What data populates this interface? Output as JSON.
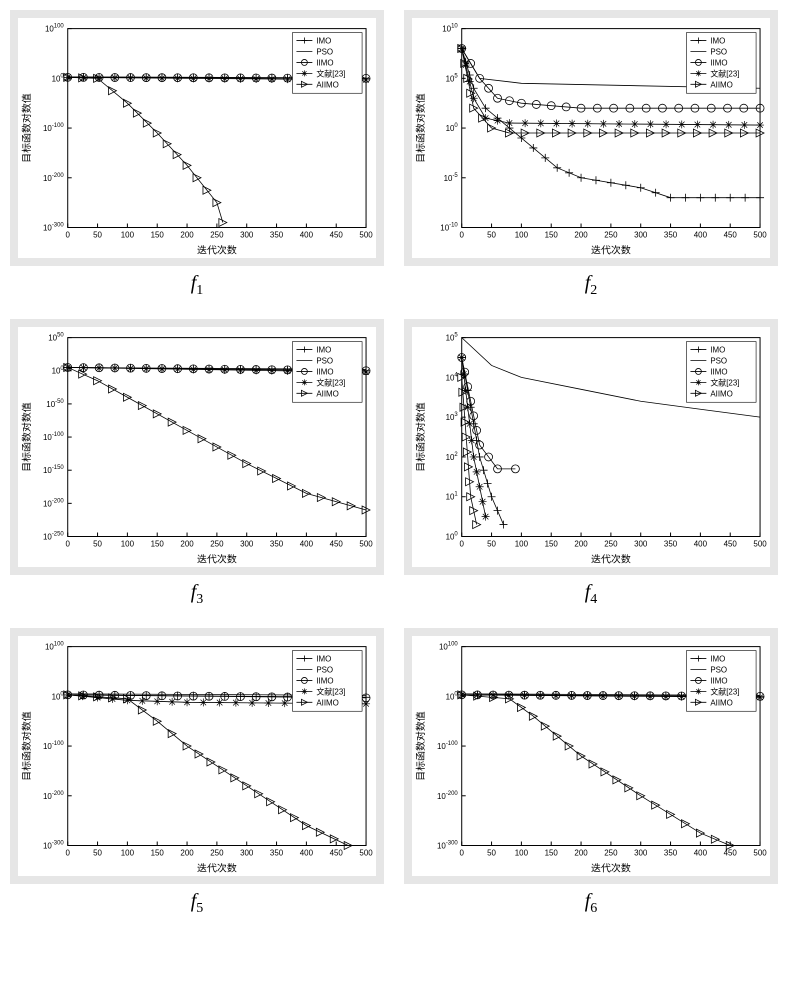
{
  "layout": {
    "rows": 3,
    "cols": 2,
    "panel_bg": "#e6e6e6",
    "plot_bg": "#ffffff"
  },
  "common": {
    "xlim": [
      0,
      500
    ],
    "xticks": [
      0,
      50,
      100,
      150,
      200,
      250,
      300,
      350,
      400,
      450,
      500
    ],
    "xlabel": "迭代次数",
    "ylabel": "目标函数对数值",
    "label_fontsize": 10,
    "tick_fontsize": 8,
    "axis_color": "#000000",
    "legend_items": [
      "IMO",
      "PSO",
      "IIMO",
      "文献[23]",
      "AIIMO"
    ],
    "legend_markers": [
      "plus",
      "line",
      "circle",
      "star",
      "triangle"
    ],
    "legend_fontsize": 8,
    "marker_size": 4,
    "line_color": "#000000",
    "line_width": 0.8
  },
  "panels": [
    {
      "caption": "f",
      "sub": "1",
      "ylim_exp": [
        -300,
        100
      ],
      "ytick_exp": [
        -300,
        -200,
        -100,
        0,
        100
      ],
      "yticks_label": [
        "10^{-300}",
        "10^{-200}",
        "10^{-100}",
        "10^{0}",
        "10^{100}"
      ],
      "series": {
        "IMO": {
          "marker": "plus",
          "pts": [
            [
              0,
              2
            ],
            [
              500,
              0
            ]
          ]
        },
        "PSO": {
          "marker": "line",
          "pts": [
            [
              0,
              3
            ],
            [
              500,
              1
            ]
          ]
        },
        "IIMO": {
          "marker": "circle",
          "pts": [
            [
              0,
              2
            ],
            [
              500,
              0
            ]
          ]
        },
        "ref23": {
          "marker": "star",
          "pts": [
            [
              0,
              2
            ],
            [
              500,
              -3
            ]
          ]
        },
        "AIIMO": {
          "marker": "triangle",
          "pts": [
            [
              0,
              2
            ],
            [
              50,
              0
            ],
            [
              100,
              -50
            ],
            [
              150,
              -110
            ],
            [
              200,
              -175
            ],
            [
              250,
              -250
            ],
            [
              260,
              -290
            ]
          ]
        }
      }
    },
    {
      "caption": "f",
      "sub": "2",
      "ylim_exp": [
        -10,
        10
      ],
      "ytick_exp": [
        -10,
        -5,
        0,
        5,
        10
      ],
      "yticks_label": [
        "10^{-10}",
        "10^{-5}",
        "10^{0}",
        "10^{5}",
        "10^{10}"
      ],
      "series": {
        "IMO": {
          "marker": "plus",
          "pts": [
            [
              0,
              8
            ],
            [
              20,
              4
            ],
            [
              40,
              2
            ],
            [
              80,
              0
            ],
            [
              120,
              -2
            ],
            [
              160,
              -4
            ],
            [
              200,
              -5
            ],
            [
              300,
              -6
            ],
            [
              350,
              -7
            ],
            [
              500,
              -7
            ]
          ]
        },
        "PSO": {
          "marker": "line",
          "pts": [
            [
              0,
              8
            ],
            [
              30,
              5
            ],
            [
              100,
              4.5
            ],
            [
              500,
              4
            ]
          ]
        },
        "IIMO": {
          "marker": "circle",
          "pts": [
            [
              0,
              8
            ],
            [
              30,
              5
            ],
            [
              60,
              3
            ],
            [
              100,
              2.5
            ],
            [
              200,
              2
            ],
            [
              500,
              2
            ]
          ]
        },
        "ref23": {
          "marker": "star",
          "pts": [
            [
              0,
              8
            ],
            [
              20,
              3
            ],
            [
              40,
              1
            ],
            [
              80,
              0.5
            ],
            [
              500,
              0.3
            ]
          ]
        },
        "AIIMO": {
          "marker": "triangle",
          "pts": [
            [
              0,
              8
            ],
            [
              20,
              2
            ],
            [
              50,
              0
            ],
            [
              80,
              -0.5
            ],
            [
              500,
              -0.5
            ]
          ]
        }
      }
    },
    {
      "caption": "f",
      "sub": "3",
      "ylim_exp": [
        -250,
        50
      ],
      "ytick_exp": [
        -250,
        -200,
        -150,
        -100,
        -50,
        0,
        50
      ],
      "yticks_label": [
        "10^{-250}",
        "10^{-200}",
        "10^{-150}",
        "10^{-100}",
        "10^{-50}",
        "10^{0}",
        "10^{50}"
      ],
      "series": {
        "IMO": {
          "marker": "plus",
          "pts": [
            [
              0,
              5
            ],
            [
              500,
              0
            ]
          ]
        },
        "PSO": {
          "marker": "line",
          "pts": [
            [
              0,
              5
            ],
            [
              500,
              2
            ]
          ]
        },
        "IIMO": {
          "marker": "circle",
          "pts": [
            [
              0,
              5
            ],
            [
              500,
              0
            ]
          ]
        },
        "ref23": {
          "marker": "star",
          "pts": [
            [
              0,
              5
            ],
            [
              500,
              -2
            ]
          ]
        },
        "AIIMO": {
          "marker": "triangle",
          "pts": [
            [
              0,
              5
            ],
            [
              50,
              -15
            ],
            [
              100,
              -40
            ],
            [
              200,
              -90
            ],
            [
              300,
              -140
            ],
            [
              400,
              -185
            ],
            [
              500,
              -210
            ]
          ]
        }
      }
    },
    {
      "caption": "f",
      "sub": "4",
      "ylim_exp": [
        0,
        5
      ],
      "ytick_exp": [
        0,
        1,
        2,
        3,
        4,
        5
      ],
      "yticks_label": [
        "10^{0}",
        "10^{1}",
        "10^{2}",
        "10^{3}",
        "10^{4}",
        "10^{5}"
      ],
      "series": {
        "IMO": {
          "marker": "plus",
          "pts": [
            [
              0,
              4.5
            ],
            [
              30,
              2
            ],
            [
              50,
              1
            ],
            [
              70,
              0.3
            ]
          ]
        },
        "PSO": {
          "marker": "line",
          "pts": [
            [
              0,
              5
            ],
            [
              50,
              4.3
            ],
            [
              100,
              4
            ],
            [
              200,
              3.7
            ],
            [
              300,
              3.4
            ],
            [
              400,
              3.2
            ],
            [
              500,
              3
            ]
          ]
        },
        "IIMO": {
          "marker": "circle",
          "pts": [
            [
              0,
              4.5
            ],
            [
              30,
              2.3
            ],
            [
              60,
              1.7
            ],
            [
              90,
              1.7
            ]
          ]
        },
        "ref23": {
          "marker": "star",
          "pts": [
            [
              0,
              4.5
            ],
            [
              20,
              2
            ],
            [
              40,
              0.5
            ]
          ]
        },
        "AIIMO": {
          "marker": "triangle",
          "pts": [
            [
              0,
              4
            ],
            [
              15,
              1
            ],
            [
              25,
              0.3
            ]
          ]
        }
      }
    },
    {
      "caption": "f",
      "sub": "5",
      "ylim_exp": [
        -300,
        100
      ],
      "ytick_exp": [
        -300,
        -200,
        -100,
        0,
        100
      ],
      "yticks_label": [
        "10^{-300}",
        "10^{-200}",
        "10^{-100}",
        "10^{0}",
        "10^{100}"
      ],
      "series": {
        "IMO": {
          "marker": "plus",
          "pts": [
            [
              0,
              3
            ],
            [
              500,
              -2
            ]
          ]
        },
        "PSO": {
          "marker": "line",
          "pts": [
            [
              0,
              5
            ],
            [
              500,
              2
            ]
          ]
        },
        "IIMO": {
          "marker": "circle",
          "pts": [
            [
              0,
              3
            ],
            [
              500,
              -3
            ]
          ]
        },
        "ref23": {
          "marker": "star",
          "pts": [
            [
              0,
              3
            ],
            [
              100,
              -8
            ],
            [
              200,
              -12
            ],
            [
              500,
              -15
            ]
          ]
        },
        "AIIMO": {
          "marker": "triangle",
          "pts": [
            [
              0,
              3
            ],
            [
              100,
              -5
            ],
            [
              150,
              -50
            ],
            [
              200,
              -100
            ],
            [
              300,
              -180
            ],
            [
              400,
              -260
            ],
            [
              470,
              -300
            ]
          ]
        }
      }
    },
    {
      "caption": "f",
      "sub": "6",
      "ylim_exp": [
        -300,
        100
      ],
      "ytick_exp": [
        -300,
        -200,
        -100,
        0,
        100
      ],
      "yticks_label": [
        "10^{-300}",
        "10^{-200}",
        "10^{-100}",
        "10^{0}",
        "10^{100}"
      ],
      "series": {
        "IMO": {
          "marker": "plus",
          "pts": [
            [
              0,
              3
            ],
            [
              500,
              0
            ]
          ]
        },
        "PSO": {
          "marker": "line",
          "pts": [
            [
              0,
              5
            ],
            [
              500,
              2
            ]
          ]
        },
        "IIMO": {
          "marker": "circle",
          "pts": [
            [
              0,
              3
            ],
            [
              500,
              0
            ]
          ]
        },
        "ref23": {
          "marker": "star",
          "pts": [
            [
              0,
              3
            ],
            [
              500,
              -2
            ]
          ]
        },
        "AIIMO": {
          "marker": "triangle",
          "pts": [
            [
              0,
              3
            ],
            [
              80,
              -5
            ],
            [
              120,
              -40
            ],
            [
              200,
              -120
            ],
            [
              300,
              -200
            ],
            [
              400,
              -275
            ],
            [
              450,
              -300
            ]
          ]
        }
      }
    }
  ]
}
